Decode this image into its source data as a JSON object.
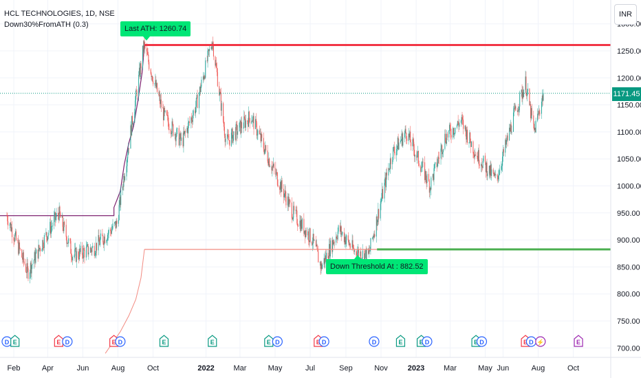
{
  "header": {
    "title": "HCL TECHNOLOGIES, 1D, NSE",
    "indicator": "Down30%FromATH (0.3)"
  },
  "currency_button": "INR",
  "labels": {
    "ath": "Last ATH: 1260.74",
    "threshold": "Down Threshold At : 882.52"
  },
  "current_price": "1171.45",
  "colors": {
    "up": "#089981",
    "down": "#f23645",
    "ath_line": "#f23645",
    "threshold_line": "#4caf50",
    "label_bg": "#00e676",
    "price_tag": "#089981",
    "ath_trail": "#7b1f6e"
  },
  "chart_data": {
    "type": "candlestick",
    "title": "HCL TECHNOLOGIES, 1D, NSE",
    "ylim": [
      690,
      1320
    ],
    "y_ticks": [
      "700.00",
      "750.00",
      "800.00",
      "850.00",
      "900.00",
      "950.00",
      "1000.00",
      "1050.00",
      "1100.00",
      "1150.00",
      "1200.00",
      "1250.00",
      "1300.00"
    ],
    "x_ticks": [
      {
        "label": "Feb",
        "date": "2021-02"
      },
      {
        "label": "Apr",
        "date": "2021-04"
      },
      {
        "label": "Jun",
        "date": "2021-06"
      },
      {
        "label": "Aug",
        "date": "2021-08"
      },
      {
        "label": "Oct",
        "date": "2021-10"
      },
      {
        "label": "2022",
        "date": "2022-01",
        "bold": true
      },
      {
        "label": "Mar",
        "date": "2022-03"
      },
      {
        "label": "May",
        "date": "2022-05"
      },
      {
        "label": "Jul",
        "date": "2022-07"
      },
      {
        "label": "Sep",
        "date": "2022-09"
      },
      {
        "label": "Nov",
        "date": "2022-11"
      },
      {
        "label": "2023",
        "date": "2023-01",
        "bold": true
      },
      {
        "label": "Mar",
        "date": "2023-03"
      },
      {
        "label": "May",
        "date": "2023-05"
      },
      {
        "label": "Jun",
        "date": "2023-06"
      },
      {
        "label": "Aug",
        "date": "2023-08"
      },
      {
        "label": "Oct",
        "date": "2023-10"
      }
    ],
    "price_path": [
      {
        "date": "2021-01-20",
        "close": 945
      },
      {
        "date": "2021-02-25",
        "close": 840
      },
      {
        "date": "2021-03-25",
        "close": 900
      },
      {
        "date": "2021-04-20",
        "close": 950
      },
      {
        "date": "2021-05-15",
        "close": 870
      },
      {
        "date": "2021-06-20",
        "close": 885
      },
      {
        "date": "2021-07-30",
        "close": 930
      },
      {
        "date": "2021-08-20",
        "close": 1080
      },
      {
        "date": "2021-09-15",
        "close": 1260
      },
      {
        "date": "2021-10-20",
        "close": 1130
      },
      {
        "date": "2021-11-20",
        "close": 1080
      },
      {
        "date": "2021-12-15",
        "close": 1150
      },
      {
        "date": "2022-01-12",
        "close": 1270
      },
      {
        "date": "2022-02-05",
        "close": 1080
      },
      {
        "date": "2022-03-20",
        "close": 1130
      },
      {
        "date": "2022-04-20",
        "close": 1050
      },
      {
        "date": "2022-06-01",
        "close": 950
      },
      {
        "date": "2022-07-05",
        "close": 900
      },
      {
        "date": "2022-07-20",
        "close": 850
      },
      {
        "date": "2022-08-20",
        "close": 920
      },
      {
        "date": "2022-09-15",
        "close": 880
      },
      {
        "date": "2022-10-10",
        "close": 870
      },
      {
        "date": "2022-11-20",
        "close": 1060
      },
      {
        "date": "2022-12-15",
        "close": 1100
      },
      {
        "date": "2023-01-25",
        "close": 1000
      },
      {
        "date": "2023-02-20",
        "close": 1090
      },
      {
        "date": "2023-03-20",
        "close": 1120
      },
      {
        "date": "2023-04-15",
        "close": 1060
      },
      {
        "date": "2023-05-20",
        "close": 1010
      },
      {
        "date": "2023-06-20",
        "close": 1130
      },
      {
        "date": "2023-07-10",
        "close": 1190
      },
      {
        "date": "2023-07-25",
        "close": 1100
      },
      {
        "date": "2023-08-10",
        "close": 1171
      }
    ],
    "ath_level": 1260.74,
    "threshold_level": 882.52,
    "current_price": 1171.45,
    "event_markers": [
      {
        "date": "2021-01-20",
        "kind": "dividend",
        "letter": "D",
        "color": "#2962ff"
      },
      {
        "date": "2021-02-03",
        "kind": "earnings",
        "letter": "E",
        "color": "#089981"
      },
      {
        "date": "2021-04-20",
        "kind": "earnings",
        "letter": "E",
        "color": "#f23645"
      },
      {
        "date": "2021-05-05",
        "kind": "dividend",
        "letter": "D",
        "color": "#2962ff"
      },
      {
        "date": "2021-07-25",
        "kind": "earnings",
        "letter": "E",
        "color": "#f23645"
      },
      {
        "date": "2021-08-05",
        "kind": "dividend",
        "letter": "D",
        "color": "#2962ff"
      },
      {
        "date": "2021-10-20",
        "kind": "earnings",
        "letter": "E",
        "color": "#089981"
      },
      {
        "date": "2022-01-12",
        "kind": "earnings",
        "letter": "E",
        "color": "#089981"
      },
      {
        "date": "2022-04-20",
        "kind": "earnings",
        "letter": "E",
        "color": "#089981"
      },
      {
        "date": "2022-05-05",
        "kind": "dividend",
        "letter": "D",
        "color": "#2962ff"
      },
      {
        "date": "2022-07-15",
        "kind": "earnings",
        "letter": "E",
        "color": "#f23645"
      },
      {
        "date": "2022-07-25",
        "kind": "dividend",
        "letter": "D",
        "color": "#2962ff"
      },
      {
        "date": "2022-10-20",
        "kind": "dividend",
        "letter": "D",
        "color": "#2962ff"
      },
      {
        "date": "2022-12-05",
        "kind": "earnings",
        "letter": "E",
        "color": "#089981"
      },
      {
        "date": "2023-01-10",
        "kind": "earnings",
        "letter": "E",
        "color": "#089981"
      },
      {
        "date": "2023-01-20",
        "kind": "dividend",
        "letter": "D",
        "color": "#2962ff"
      },
      {
        "date": "2023-04-15",
        "kind": "earnings",
        "letter": "E",
        "color": "#089981"
      },
      {
        "date": "2023-04-25",
        "kind": "dividend",
        "letter": "D",
        "color": "#2962ff"
      },
      {
        "date": "2023-07-10",
        "kind": "earnings",
        "letter": "E",
        "color": "#f23645"
      },
      {
        "date": "2023-07-20",
        "kind": "dividend",
        "letter": "D",
        "color": "#2962ff"
      },
      {
        "date": "2023-08-05",
        "kind": "split",
        "letter": "⚡",
        "color": "#9c27b0"
      },
      {
        "date": "2023-10-10",
        "kind": "earnings",
        "letter": "E",
        "color": "#9c27b0"
      }
    ]
  }
}
